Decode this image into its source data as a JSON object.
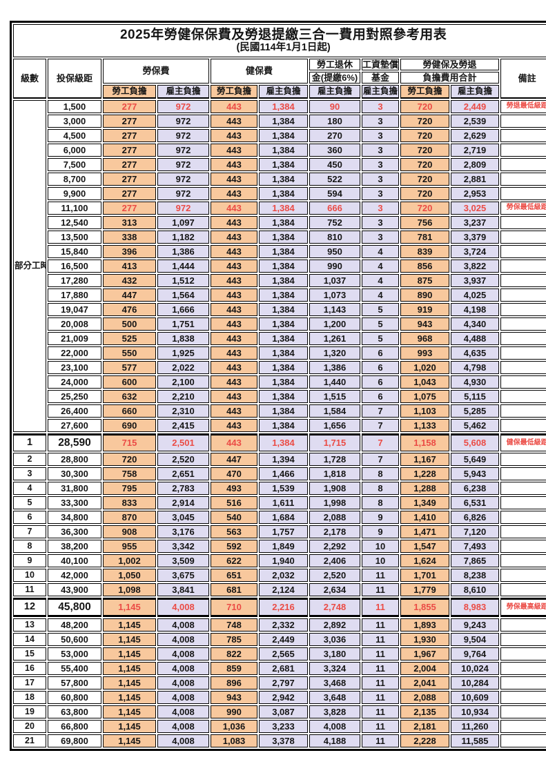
{
  "title": "2025年勞健保保費及勞退提繳三合一費用對照參考用表",
  "subtitle": "(民國114年1月1日起)",
  "colors": {
    "employee_bg": "#F8C89D",
    "employer_bg": "#DFDCF1",
    "highlight_red": "#EB4B45"
  },
  "header": {
    "level": "級數",
    "bracket": "投保級距",
    "labor": "勞保費",
    "health": "健保費",
    "pension_line1": "勞工退休",
    "pension_line2": "金(提繳6%)",
    "fund_line1": "工資墊償",
    "fund_line2": "基金",
    "total_line1": "勞健保及勞退",
    "total_line2": "負擔費用合計",
    "note": "備註",
    "employee": "勞工負擔",
    "employer": "雇主負擔"
  },
  "part_time_label": "部分工時",
  "rows": [
    {
      "lv": null,
      "br": "1,500",
      "v": [
        "277",
        "972",
        "443",
        "1,384",
        "90",
        "3",
        "720",
        "2,449"
      ],
      "note": "勞退最低級距",
      "red": true
    },
    {
      "lv": null,
      "br": "3,000",
      "v": [
        "277",
        "972",
        "443",
        "1,384",
        "180",
        "3",
        "720",
        "2,539"
      ],
      "note": ""
    },
    {
      "lv": null,
      "br": "4,500",
      "v": [
        "277",
        "972",
        "443",
        "1,384",
        "270",
        "3",
        "720",
        "2,629"
      ],
      "note": ""
    },
    {
      "lv": null,
      "br": "6,000",
      "v": [
        "277",
        "972",
        "443",
        "1,384",
        "360",
        "3",
        "720",
        "2,719"
      ],
      "note": ""
    },
    {
      "lv": null,
      "br": "7,500",
      "v": [
        "277",
        "972",
        "443",
        "1,384",
        "450",
        "3",
        "720",
        "2,809"
      ],
      "note": ""
    },
    {
      "lv": null,
      "br": "8,700",
      "v": [
        "277",
        "972",
        "443",
        "1,384",
        "522",
        "3",
        "720",
        "2,881"
      ],
      "note": ""
    },
    {
      "lv": null,
      "br": "9,900",
      "v": [
        "277",
        "972",
        "443",
        "1,384",
        "594",
        "3",
        "720",
        "2,953"
      ],
      "note": ""
    },
    {
      "lv": null,
      "br": "11,100",
      "v": [
        "277",
        "972",
        "443",
        "1,384",
        "666",
        "3",
        "720",
        "3,025"
      ],
      "note": "勞保最低級距",
      "red": true
    },
    {
      "lv": null,
      "br": "12,540",
      "v": [
        "313",
        "1,097",
        "443",
        "1,384",
        "752",
        "3",
        "756",
        "3,237"
      ],
      "note": ""
    },
    {
      "lv": null,
      "br": "13,500",
      "v": [
        "338",
        "1,182",
        "443",
        "1,384",
        "810",
        "3",
        "781",
        "3,379"
      ],
      "note": ""
    },
    {
      "lv": null,
      "br": "15,840",
      "v": [
        "396",
        "1,386",
        "443",
        "1,384",
        "950",
        "4",
        "839",
        "3,724"
      ],
      "note": ""
    },
    {
      "lv": null,
      "br": "16,500",
      "v": [
        "413",
        "1,444",
        "443",
        "1,384",
        "990",
        "4",
        "856",
        "3,822"
      ],
      "note": ""
    },
    {
      "lv": null,
      "br": "17,280",
      "v": [
        "432",
        "1,512",
        "443",
        "1,384",
        "1,037",
        "4",
        "875",
        "3,937"
      ],
      "note": ""
    },
    {
      "lv": null,
      "br": "17,880",
      "v": [
        "447",
        "1,564",
        "443",
        "1,384",
        "1,073",
        "4",
        "890",
        "4,025"
      ],
      "note": ""
    },
    {
      "lv": null,
      "br": "19,047",
      "v": [
        "476",
        "1,666",
        "443",
        "1,384",
        "1,143",
        "5",
        "919",
        "4,198"
      ],
      "note": ""
    },
    {
      "lv": null,
      "br": "20,008",
      "v": [
        "500",
        "1,751",
        "443",
        "1,384",
        "1,200",
        "5",
        "943",
        "4,340"
      ],
      "note": ""
    },
    {
      "lv": null,
      "br": "21,009",
      "v": [
        "525",
        "1,838",
        "443",
        "1,384",
        "1,261",
        "5",
        "968",
        "4,488"
      ],
      "note": ""
    },
    {
      "lv": null,
      "br": "22,000",
      "v": [
        "550",
        "1,925",
        "443",
        "1,384",
        "1,320",
        "6",
        "993",
        "4,635"
      ],
      "note": ""
    },
    {
      "lv": null,
      "br": "23,100",
      "v": [
        "577",
        "2,022",
        "443",
        "1,384",
        "1,386",
        "6",
        "1,020",
        "4,798"
      ],
      "note": ""
    },
    {
      "lv": null,
      "br": "24,000",
      "v": [
        "600",
        "2,100",
        "443",
        "1,384",
        "1,440",
        "6",
        "1,043",
        "4,930"
      ],
      "note": ""
    },
    {
      "lv": null,
      "br": "25,250",
      "v": [
        "632",
        "2,210",
        "443",
        "1,384",
        "1,515",
        "6",
        "1,075",
        "5,115"
      ],
      "note": ""
    },
    {
      "lv": null,
      "br": "26,400",
      "v": [
        "660",
        "2,310",
        "443",
        "1,384",
        "1,584",
        "7",
        "1,103",
        "5,285"
      ],
      "note": ""
    },
    {
      "lv": null,
      "br": "27,600",
      "v": [
        "690",
        "2,415",
        "443",
        "1,384",
        "1,656",
        "7",
        "1,133",
        "5,462"
      ],
      "note": ""
    },
    {
      "lv": "1",
      "br": "28,590",
      "v": [
        "715",
        "2,501",
        "443",
        "1,384",
        "1,715",
        "7",
        "1,158",
        "5,608"
      ],
      "note": "健保最低級距",
      "red": true,
      "emph": true,
      "thick_top": true
    },
    {
      "lv": "2",
      "br": "28,800",
      "v": [
        "720",
        "2,520",
        "447",
        "1,394",
        "1,728",
        "7",
        "1,167",
        "5,649"
      ],
      "note": ""
    },
    {
      "lv": "3",
      "br": "30,300",
      "v": [
        "758",
        "2,651",
        "470",
        "1,466",
        "1,818",
        "8",
        "1,228",
        "5,943"
      ],
      "note": ""
    },
    {
      "lv": "4",
      "br": "31,800",
      "v": [
        "795",
        "2,783",
        "493",
        "1,539",
        "1,908",
        "8",
        "1,288",
        "6,238"
      ],
      "note": ""
    },
    {
      "lv": "5",
      "br": "33,300",
      "v": [
        "833",
        "2,914",
        "516",
        "1,611",
        "1,998",
        "8",
        "1,349",
        "6,531"
      ],
      "note": ""
    },
    {
      "lv": "6",
      "br": "34,800",
      "v": [
        "870",
        "3,045",
        "540",
        "1,684",
        "2,088",
        "9",
        "1,410",
        "6,826"
      ],
      "note": ""
    },
    {
      "lv": "7",
      "br": "36,300",
      "v": [
        "908",
        "3,176",
        "563",
        "1,757",
        "2,178",
        "9",
        "1,471",
        "7,120"
      ],
      "note": ""
    },
    {
      "lv": "8",
      "br": "38,200",
      "v": [
        "955",
        "3,342",
        "592",
        "1,849",
        "2,292",
        "10",
        "1,547",
        "7,493"
      ],
      "note": ""
    },
    {
      "lv": "9",
      "br": "40,100",
      "v": [
        "1,002",
        "3,509",
        "622",
        "1,940",
        "2,406",
        "10",
        "1,624",
        "7,865"
      ],
      "note": ""
    },
    {
      "lv": "10",
      "br": "42,000",
      "v": [
        "1,050",
        "3,675",
        "651",
        "2,032",
        "2,520",
        "11",
        "1,701",
        "8,238"
      ],
      "note": ""
    },
    {
      "lv": "11",
      "br": "43,900",
      "v": [
        "1,098",
        "3,841",
        "681",
        "2,124",
        "2,634",
        "11",
        "1,779",
        "8,610"
      ],
      "note": ""
    },
    {
      "lv": "12",
      "br": "45,800",
      "v": [
        "1,145",
        "4,008",
        "710",
        "2,216",
        "2,748",
        "11",
        "1,855",
        "8,983"
      ],
      "note": "勞保最高級距",
      "red": true,
      "emph": true,
      "thick_top": true,
      "thick_bottom": true
    },
    {
      "lv": "13",
      "br": "48,200",
      "v": [
        "1,145",
        "4,008",
        "748",
        "2,332",
        "2,892",
        "11",
        "1,893",
        "9,243"
      ],
      "note": ""
    },
    {
      "lv": "14",
      "br": "50,600",
      "v": [
        "1,145",
        "4,008",
        "785",
        "2,449",
        "3,036",
        "11",
        "1,930",
        "9,504"
      ],
      "note": ""
    },
    {
      "lv": "15",
      "br": "53,000",
      "v": [
        "1,145",
        "4,008",
        "822",
        "2,565",
        "3,180",
        "11",
        "1,967",
        "9,764"
      ],
      "note": ""
    },
    {
      "lv": "16",
      "br": "55,400",
      "v": [
        "1,145",
        "4,008",
        "859",
        "2,681",
        "3,324",
        "11",
        "2,004",
        "10,024"
      ],
      "note": ""
    },
    {
      "lv": "17",
      "br": "57,800",
      "v": [
        "1,145",
        "4,008",
        "896",
        "2,797",
        "3,468",
        "11",
        "2,041",
        "10,284"
      ],
      "note": ""
    },
    {
      "lv": "18",
      "br": "60,800",
      "v": [
        "1,145",
        "4,008",
        "943",
        "2,942",
        "3,648",
        "11",
        "2,088",
        "10,609"
      ],
      "note": ""
    },
    {
      "lv": "19",
      "br": "63,800",
      "v": [
        "1,145",
        "4,008",
        "990",
        "3,087",
        "3,828",
        "11",
        "2,135",
        "10,934"
      ],
      "note": ""
    },
    {
      "lv": "20",
      "br": "66,800",
      "v": [
        "1,145",
        "4,008",
        "1,036",
        "3,233",
        "4,008",
        "11",
        "2,181",
        "11,260"
      ],
      "note": ""
    },
    {
      "lv": "21",
      "br": "69,800",
      "v": [
        "1,145",
        "4,008",
        "1,083",
        "3,378",
        "4,188",
        "11",
        "2,228",
        "11,585"
      ],
      "note": ""
    }
  ]
}
